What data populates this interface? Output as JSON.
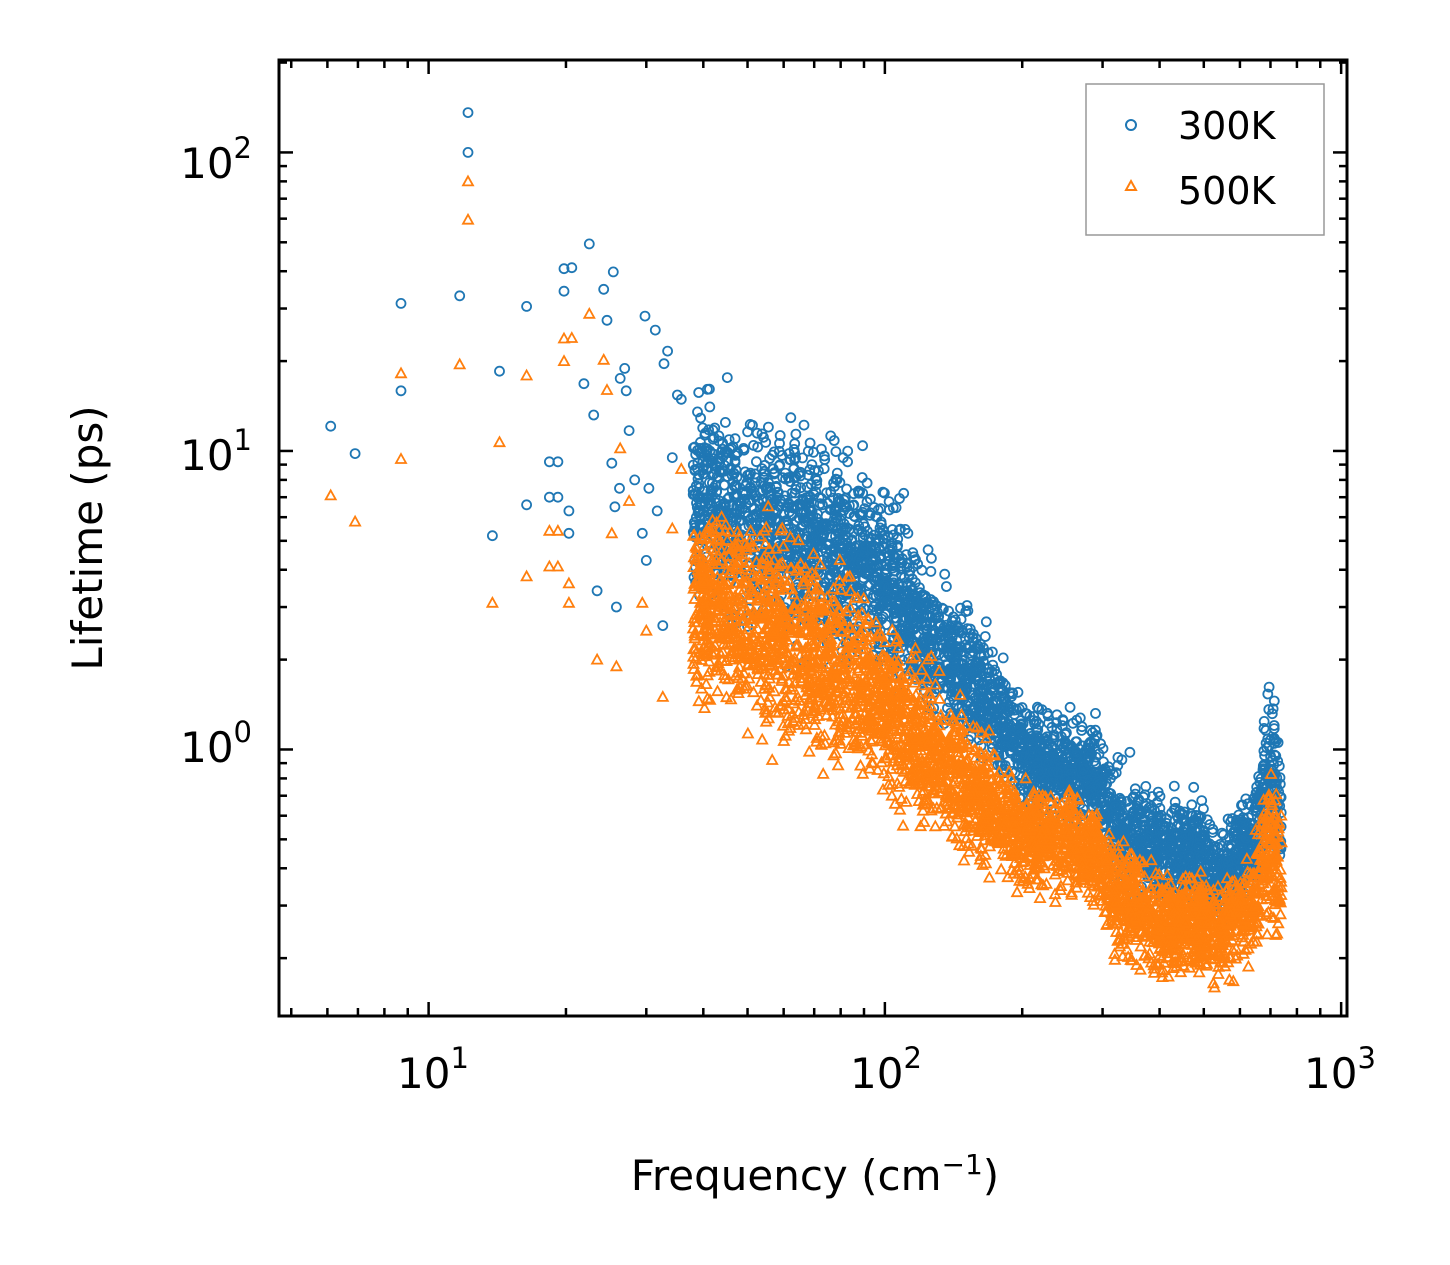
{
  "chart_data": {
    "type": "scatter",
    "x_scale": "log",
    "y_scale": "log",
    "xlabel": "Frequency (cm",
    "xlabel_sup": "−1",
    "xlabel_close": ")",
    "ylabel": "Lifetime (ps)",
    "xlim": [
      4.7,
      1030
    ],
    "ylim": [
      0.128,
      204
    ],
    "x_ticks": [
      {
        "base": "10",
        "exp": "1",
        "value": 10
      },
      {
        "base": "10",
        "exp": "2",
        "value": 100
      },
      {
        "base": "10",
        "exp": "3",
        "value": 1000
      }
    ],
    "y_ticks": [
      {
        "base": "10",
        "exp": "0",
        "value": 1
      },
      {
        "base": "10",
        "exp": "1",
        "value": 10
      },
      {
        "base": "10",
        "exp": "2",
        "value": 100
      }
    ],
    "legend_position": "top-right",
    "series": [
      {
        "name": "300K",
        "marker": "circle",
        "color": "#1f77b4",
        "points": [
          [
            6.1,
            12.1
          ],
          [
            6.9,
            9.8
          ],
          [
            8.7,
            31.2
          ],
          [
            8.7,
            15.9
          ],
          [
            11.7,
            33.1
          ],
          [
            12.2,
            136
          ],
          [
            12.2,
            100
          ],
          [
            13.8,
            5.2
          ],
          [
            14.3,
            18.5
          ],
          [
            16.4,
            30.5
          ],
          [
            16.4,
            6.6
          ],
          [
            18.4,
            9.2
          ],
          [
            18.4,
            7
          ],
          [
            19.2,
            9.2
          ],
          [
            19.2,
            7
          ],
          [
            19.8,
            40.8
          ],
          [
            19.8,
            34.3
          ],
          [
            20.3,
            6.3
          ],
          [
            20.3,
            5.3
          ],
          [
            20.6,
            41.1
          ],
          [
            21.9,
            16.8
          ],
          [
            22.5,
            49.4
          ],
          [
            23,
            13.2
          ],
          [
            23.4,
            3.4
          ],
          [
            24.2,
            34.8
          ],
          [
            24.6,
            27.4
          ],
          [
            25.2,
            9.1
          ],
          [
            25.4,
            39.8
          ],
          [
            25.6,
            6.5
          ],
          [
            25.8,
            3
          ],
          [
            26.2,
            7.5
          ],
          [
            26.3,
            17.5
          ],
          [
            26.9,
            18.9
          ],
          [
            27.1,
            15.9
          ],
          [
            27.5,
            11.7
          ],
          [
            28.3,
            8
          ],
          [
            29.4,
            5.3
          ],
          [
            29.8,
            28.3
          ],
          [
            30,
            4.3
          ],
          [
            30.4,
            7.5
          ],
          [
            31.4,
            25.4
          ],
          [
            31.7,
            6.3
          ],
          [
            32.6,
            2.6
          ],
          [
            32.8,
            19.6
          ],
          [
            33.4,
            21.6
          ],
          [
            34.2,
            9.5
          ],
          [
            35.1,
            15.4
          ],
          [
            35.8,
            14.9
          ]
        ]
      },
      {
        "name": "500K",
        "marker": "triangle",
        "color": "#ff7f0e",
        "points": [
          [
            6.1,
            7.1
          ],
          [
            6.9,
            5.8
          ],
          [
            8.7,
            18.2
          ],
          [
            8.7,
            9.4
          ],
          [
            11.7,
            19.5
          ],
          [
            12.2,
            80
          ],
          [
            12.2,
            59.5
          ],
          [
            13.8,
            3.1
          ],
          [
            14.3,
            10.7
          ],
          [
            16.4,
            17.9
          ],
          [
            16.4,
            3.8
          ],
          [
            18.4,
            5.4
          ],
          [
            18.4,
            4.1
          ],
          [
            19.2,
            5.4
          ],
          [
            19.2,
            4.1
          ],
          [
            19.8,
            23.8
          ],
          [
            19.8,
            20
          ],
          [
            20.3,
            3.6
          ],
          [
            20.3,
            3.1
          ],
          [
            20.6,
            23.9
          ],
          [
            22.5,
            28.8
          ],
          [
            23.4,
            2
          ],
          [
            24.2,
            20.2
          ],
          [
            24.6,
            16
          ],
          [
            25.2,
            5.3
          ],
          [
            25.8,
            1.9
          ],
          [
            26.3,
            10.2
          ],
          [
            27.5,
            6.8
          ],
          [
            29.4,
            3.1
          ],
          [
            30,
            2.5
          ],
          [
            32.6,
            1.5
          ],
          [
            34.2,
            5.5
          ],
          [
            35.8,
            8.7
          ]
        ]
      }
    ],
    "bands": [
      {
        "series": "300K",
        "center": [
          [
            38,
            7.5
          ],
          [
            48,
            6.0
          ],
          [
            60,
            5.2
          ],
          [
            75,
            4.8
          ],
          [
            92,
            4.0
          ],
          [
            105,
            3.4
          ],
          [
            125,
            2.4
          ],
          [
            150,
            1.75
          ],
          [
            175,
            1.35
          ],
          [
            200,
            0.98
          ],
          [
            240,
            0.88
          ],
          [
            290,
            0.8
          ],
          [
            320,
            0.55
          ],
          [
            360,
            0.52
          ],
          [
            410,
            0.44
          ],
          [
            470,
            0.48
          ],
          [
            540,
            0.38
          ],
          [
            640,
            0.5
          ],
          [
            700,
            0.88
          ],
          [
            740,
            0.6
          ]
        ],
        "spread_dex": [
          0.32,
          0.34,
          0.35,
          0.34,
          0.3,
          0.28,
          0.25,
          0.22,
          0.2,
          0.18,
          0.17,
          0.17,
          0.18,
          0.2,
          0.18,
          0.18,
          0.17,
          0.2,
          0.28,
          0.25
        ],
        "count": 3600
      },
      {
        "series": "500K",
        "center": [
          [
            38,
            3.0
          ],
          [
            48,
            2.8
          ],
          [
            60,
            2.3
          ],
          [
            75,
            2.0
          ],
          [
            92,
            1.6
          ],
          [
            105,
            1.35
          ],
          [
            125,
            1.0
          ],
          [
            150,
            0.78
          ],
          [
            175,
            0.62
          ],
          [
            200,
            0.52
          ],
          [
            240,
            0.5
          ],
          [
            290,
            0.46
          ],
          [
            320,
            0.32
          ],
          [
            360,
            0.3
          ],
          [
            410,
            0.24
          ],
          [
            470,
            0.27
          ],
          [
            540,
            0.24
          ],
          [
            640,
            0.3
          ],
          [
            700,
            0.5
          ],
          [
            740,
            0.34
          ]
        ],
        "spread_dex": [
          0.3,
          0.34,
          0.36,
          0.34,
          0.3,
          0.28,
          0.25,
          0.22,
          0.2,
          0.18,
          0.17,
          0.17,
          0.18,
          0.2,
          0.18,
          0.18,
          0.17,
          0.2,
          0.28,
          0.25
        ],
        "count": 3600
      }
    ]
  },
  "legend": {
    "items": [
      {
        "label": "300K",
        "color": "#1f77b4",
        "marker": "circle"
      },
      {
        "label": "500K",
        "color": "#ff7f0e",
        "marker": "triangle"
      }
    ]
  }
}
